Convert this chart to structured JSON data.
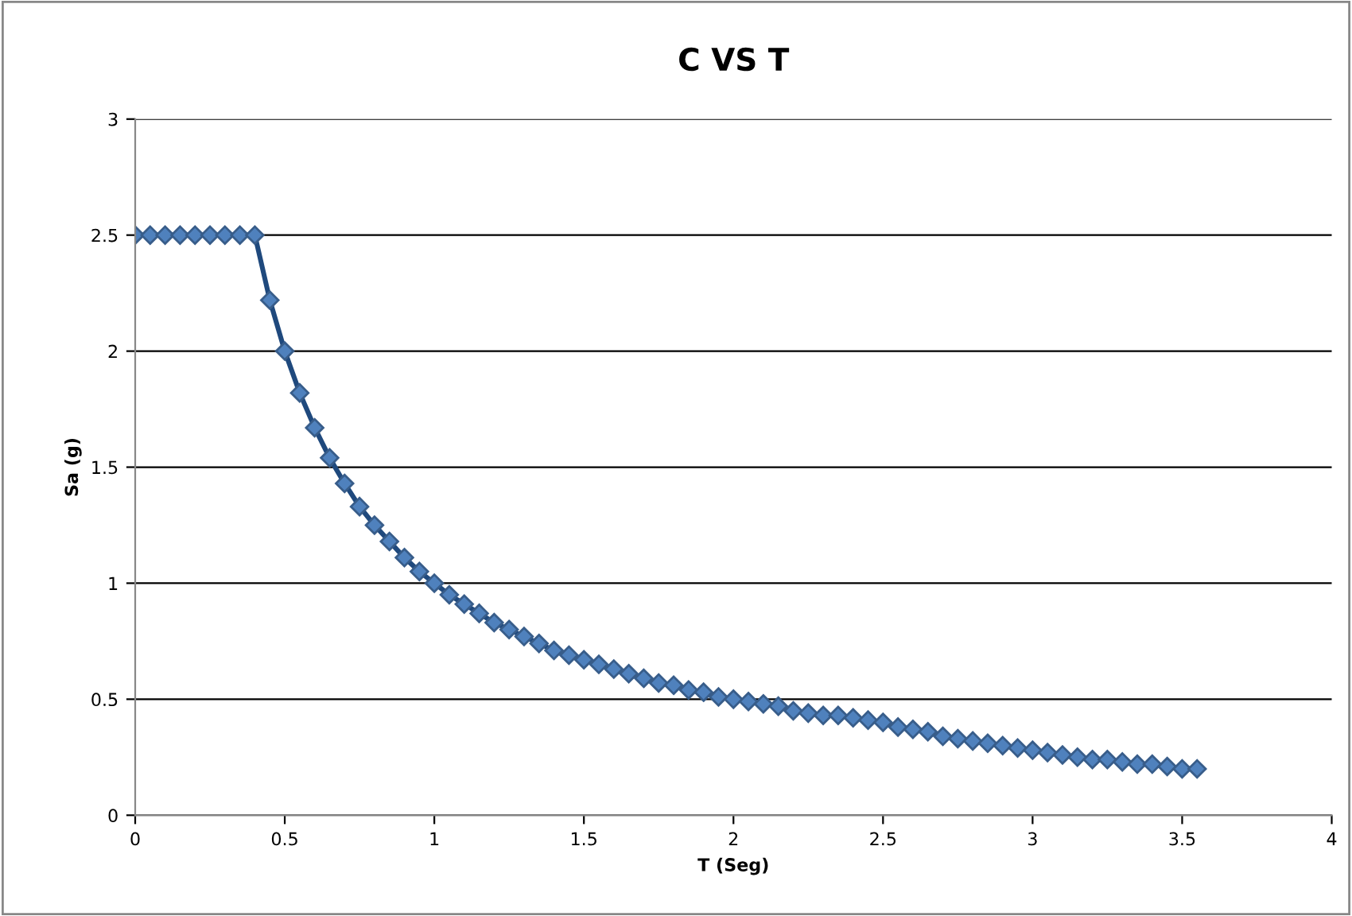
{
  "chart_data": {
    "type": "line",
    "title": "C VS T",
    "xlabel": "T (Seg)",
    "ylabel": "Sa (g)",
    "x": [
      0,
      0.05,
      0.1,
      0.15,
      0.2,
      0.25,
      0.3,
      0.35,
      0.4,
      0.45,
      0.5,
      0.55,
      0.6,
      0.65,
      0.7,
      0.75,
      0.8,
      0.85,
      0.9,
      0.95,
      1,
      1.05,
      1.1,
      1.15,
      1.2,
      1.25,
      1.3,
      1.35,
      1.4,
      1.45,
      1.5,
      1.55,
      1.6,
      1.65,
      1.7,
      1.75,
      1.8,
      1.85,
      1.9,
      1.95,
      2,
      2.05,
      2.1,
      2.15,
      2.2,
      2.25,
      2.3,
      2.35,
      2.4,
      2.45,
      2.5,
      2.55,
      2.6,
      2.65,
      2.7,
      2.75,
      2.8,
      2.85,
      2.9,
      2.95,
      3,
      3.05,
      3.1,
      3.15,
      3.2,
      3.25,
      3.3,
      3.35,
      3.4,
      3.45,
      3.5,
      3.55
    ],
    "series": [
      {
        "color": "#1f497d",
        "values": [
          2.5,
          2.5,
          2.5,
          2.5,
          2.5,
          2.5,
          2.5,
          2.5,
          2.5,
          2.22,
          2,
          1.82,
          1.67,
          1.54,
          1.43,
          1.33,
          1.25,
          1.18,
          1.11,
          1.05,
          1,
          0.95,
          0.91,
          0.87,
          0.83,
          0.8,
          0.77,
          0.74,
          0.71,
          0.69,
          0.67,
          0.65,
          0.63,
          0.61,
          0.59,
          0.57,
          0.56,
          0.54,
          0.53,
          0.51,
          0.5,
          0.49,
          0.48,
          0.47,
          0.45,
          0.44,
          0.43,
          0.43,
          0.42,
          0.41,
          0.4,
          0.38,
          0.37,
          0.36,
          0.34,
          0.33,
          0.32,
          0.31,
          0.3,
          0.29,
          0.28,
          0.27,
          0.26,
          0.25,
          0.24,
          0.24,
          0.23,
          0.22,
          0.22,
          0.21,
          0.2,
          0.2
        ]
      }
    ],
    "xlim": [
      0,
      4
    ],
    "xticks": [
      0,
      0.5,
      1,
      1.5,
      2,
      2.5,
      3,
      3.5,
      4
    ],
    "ylim": [
      0,
      3
    ],
    "yticks": [
      0,
      0.5,
      1,
      1.5,
      2,
      2.5,
      3
    ],
    "grid": "y",
    "marker": "diamond",
    "line_style": "solid"
  }
}
